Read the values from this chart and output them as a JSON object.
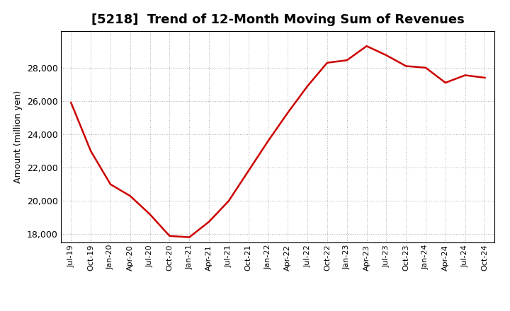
{
  "title": "[5218]  Trend of 12-Month Moving Sum of Revenues",
  "ylabel": "Amount (million yen)",
  "line_color": "#cc0000",
  "line_width": 1.8,
  "background_color": "#ffffff",
  "plot_bg_color": "#ffffff",
  "grid_color": "#999999",
  "ylim": [
    17500,
    30200
  ],
  "yticks": [
    18000,
    20000,
    22000,
    24000,
    26000,
    28000
  ],
  "x_labels": [
    "Jul-19",
    "Oct-19",
    "Jan-20",
    "Apr-20",
    "Jul-20",
    "Oct-20",
    "Jan-21",
    "Apr-21",
    "Jul-21",
    "Oct-21",
    "Jan-22",
    "Apr-22",
    "Jul-22",
    "Oct-22",
    "Jan-23",
    "Apr-23",
    "Jul-23",
    "Oct-23",
    "Jan-24",
    "Apr-24",
    "Jul-24",
    "Oct-24"
  ],
  "values": [
    25900,
    23000,
    21000,
    20300,
    19200,
    17900,
    17820,
    18750,
    20000,
    21800,
    23600,
    25300,
    26900,
    28300,
    28450,
    29300,
    28750,
    28100,
    28000,
    27100,
    27550,
    27400
  ],
  "title_fontsize": 13,
  "ylabel_fontsize": 9,
  "tick_fontsize": 8,
  "ytick_fontsize": 9
}
